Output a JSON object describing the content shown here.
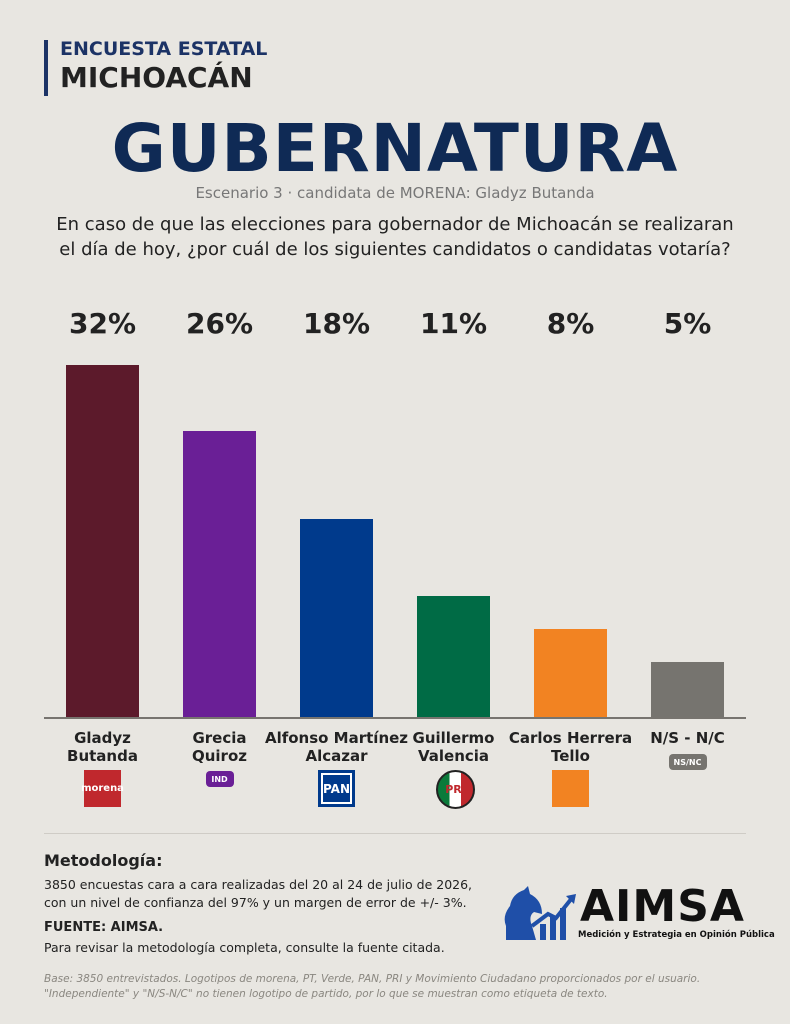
{
  "header": {
    "kicker": "ENCUESTA ESTATAL",
    "state": "MICHOACÁN"
  },
  "chart_data": {
    "type": "bar",
    "title": "GUBERNATURA",
    "subtitle": "Escenario 3 · candidata de MORENA: Gladyz Butanda",
    "question": [
      "En caso de que las elecciones para gobernador de Michoacán se realizaran",
      "el día de hoy, ¿por cuál de los siguientes candidatos o candidatas votaría?"
    ],
    "categories": [
      "Gladyz Butanda",
      "Grecia Quiroz",
      "Alfonso Martínez Alcazar",
      "Guillermo Valencia",
      "Carlos Herrera Tello",
      "N/S - N/C"
    ],
    "values": [
      32,
      26,
      18,
      11,
      8,
      5
    ],
    "value_labels": [
      "32%",
      "26%",
      "18%",
      "11%",
      "8%",
      "5%"
    ],
    "colors": [
      "#5c1a2b",
      "#6a1f96",
      "#003a8c",
      "#006b45",
      "#f28322",
      "#76746f"
    ],
    "badges": [
      "morena",
      "IND",
      "PAN",
      "PRI",
      null,
      "NS/NC"
    ],
    "ylim": [
      0,
      32
    ]
  },
  "methodology": {
    "heading": "Metodología:",
    "lines": [
      "3850 encuestas cara a cara realizadas del 20 al 24 de julio de 2026,",
      "con un nivel de confianza del 97% y un margen de error de +/- 3%."
    ],
    "source": "FUENTE: AIMSA.",
    "note": "Para revisar la metodología completa, consulte la fuente citada."
  },
  "logo": {
    "name": "AIMSA",
    "tagline": "Medición y Estrategia en Opinión Pública"
  },
  "footer": [
    "Base: 3850 entrevistados. Logotipos de morena, PT, Verde, PAN, PRI y Movimiento Ciudadano proporcionados por el usuario.",
    "\"Independiente\" y \"N/S-N/C\" no tienen logotipo de partido, por lo que se muestran como etiqueta de texto."
  ]
}
